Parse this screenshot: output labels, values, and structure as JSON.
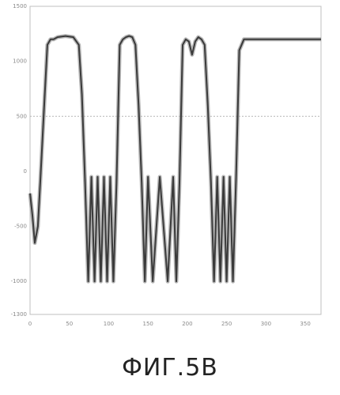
{
  "caption": "ФИГ.5B",
  "chart_data": {
    "type": "line",
    "title": "",
    "xlabel": "",
    "ylabel": "",
    "xlim": [
      0,
      370
    ],
    "ylim": [
      -1300,
      1500
    ],
    "x_ticks": [
      0,
      50,
      100,
      150,
      200,
      250,
      300,
      350
    ],
    "y_ticks": [
      -1300,
      -1000,
      -500,
      0,
      500,
      1000,
      1500
    ],
    "y_tick_labels": [
      "-1300",
      "-1000",
      "-500",
      "0",
      "500",
      "1000",
      "1500"
    ],
    "reference_line_y": 500,
    "grid": false,
    "series": [
      {
        "x": [
          0,
          3,
          6,
          10,
          13,
          18,
          22,
          26,
          30,
          35,
          45,
          55,
          62,
          66,
          70,
          74,
          78,
          82,
          86,
          90,
          94,
          98,
          102,
          106,
          110,
          114,
          118,
          122,
          126,
          130,
          134,
          138,
          142,
          146,
          150,
          156,
          165,
          175,
          182,
          186,
          190,
          194,
          198,
          202,
          206,
          210,
          214,
          218,
          222,
          226,
          230,
          234,
          238,
          242,
          246,
          250,
          254,
          258,
          262,
          266,
          272,
          278,
          282,
          285,
          288,
          292,
          296,
          300,
          304,
          308,
          312,
          316,
          320,
          324,
          328,
          332,
          336,
          340,
          344,
          348,
          352,
          356,
          362,
          370
        ],
        "y": [
          -200,
          -400,
          -650,
          -500,
          -100,
          600,
          1150,
          1200,
          1200,
          1220,
          1230,
          1220,
          1150,
          700,
          -100,
          -1000,
          -50,
          -1000,
          -50,
          -1000,
          -50,
          -1000,
          -50,
          -1000,
          -100,
          1150,
          1200,
          1220,
          1230,
          1220,
          1150,
          600,
          -100,
          -1000,
          -50,
          -1000,
          -50,
          -1000,
          -50,
          -1000,
          -100,
          1150,
          1200,
          1180,
          1060,
          1180,
          1220,
          1200,
          1150,
          600,
          -100,
          -1000,
          -50,
          -1000,
          -50,
          -1000,
          -50,
          -1000,
          -50,
          1100,
          1200,
          1200,
          1200,
          1200,
          1200,
          1200,
          1200,
          1200,
          1200,
          1200,
          1200,
          1200,
          1200,
          1200,
          1200,
          1200,
          1200,
          1200,
          1200,
          1200,
          1200,
          1200,
          1200,
          1200
        ]
      }
    ]
  }
}
